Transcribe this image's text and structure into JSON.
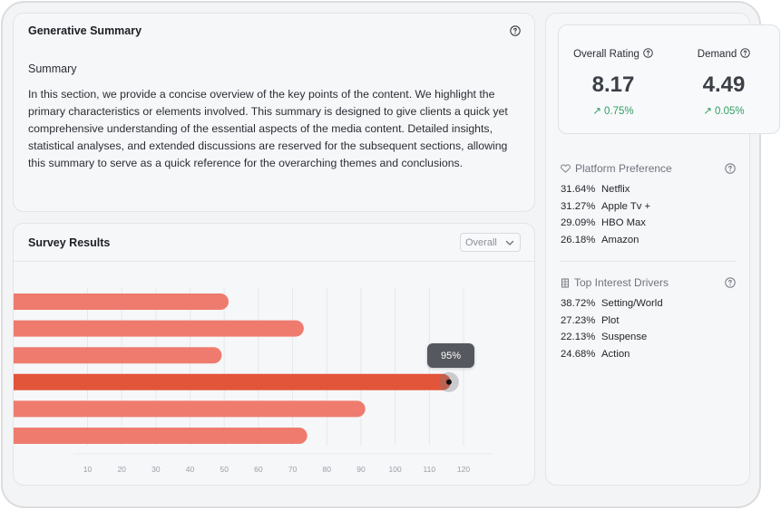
{
  "generative_summary": {
    "title": "Generative Summary",
    "heading": "Summary",
    "body": "In this section, we provide a concise overview of the key points of the content. We highlight the primary characteristics or elements involved. This summary is designed to give clients a quick yet comprehensive understanding of the essential aspects of the media content. Detailed insights, statistical analyses, and extended discussions are reserved for the subsequent sections, allowing this summary to serve as a quick reference for the overarching themes and conclusions."
  },
  "survey": {
    "title": "Survey Results",
    "filter_value": "Overall",
    "tooltip": "95%"
  },
  "chart_data": {
    "type": "bar",
    "orientation": "horizontal",
    "values": [
      51,
      73,
      49,
      116,
      91,
      74
    ],
    "highlighted_index": 3,
    "x_ticks": [
      10,
      20,
      30,
      40,
      50,
      60,
      70,
      80,
      90,
      100,
      110,
      120
    ],
    "xlim": [
      10,
      120
    ],
    "grid": true,
    "bar_color": "#ee7b6e",
    "highlight_color": "#e2553a"
  },
  "metrics": [
    {
      "label": "Overall Rating",
      "value": "8.17",
      "change": "0.75%"
    },
    {
      "label": "Demand",
      "value": "4.49",
      "change": "0.05%"
    }
  ],
  "platform_preference": {
    "title": "Platform Preference",
    "icon": "heart-icon",
    "items": [
      {
        "pct": "31.64%",
        "name": "Netflix"
      },
      {
        "pct": "31.27%",
        "name": "Apple Tv +"
      },
      {
        "pct": "29.09%",
        "name": "HBO Max"
      },
      {
        "pct": "26.18%",
        "name": "Amazon"
      }
    ]
  },
  "interest_drivers": {
    "title": "Top Interest Drivers",
    "icon": "building-icon",
    "items": [
      {
        "pct": "38.72%",
        "name": "Setting/World"
      },
      {
        "pct": "27.23%",
        "name": "Plot"
      },
      {
        "pct": "22.13%",
        "name": "Suspense"
      },
      {
        "pct": "24.68%",
        "name": "Action"
      }
    ]
  },
  "colors": {
    "positive": "#2e9e61",
    "accent": "#e2553a"
  }
}
